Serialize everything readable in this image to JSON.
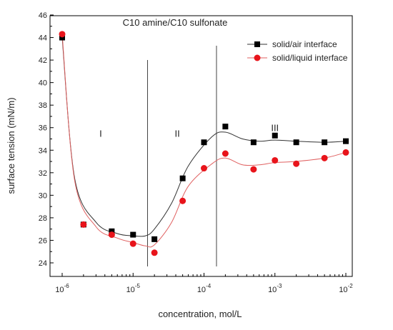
{
  "chart_data": {
    "type": "scatter",
    "title": "C10 amine/C10 sulfonate",
    "xlabel": "concentration, mol/L",
    "ylabel": "surface tension (mN/m)",
    "xscale": "log",
    "xlim": [
      1e-06,
      0.01
    ],
    "ylim": [
      24,
      46
    ],
    "xticks": [
      {
        "value": 1e-06,
        "base": "10",
        "exp": "-6"
      },
      {
        "value": 1e-05,
        "base": "10",
        "exp": "-5"
      },
      {
        "value": 0.0001,
        "base": "10",
        "exp": "-4"
      },
      {
        "value": 0.001,
        "base": "10",
        "exp": "-3"
      },
      {
        "value": 0.01,
        "base": "10",
        "exp": "-2"
      }
    ],
    "yticks": [
      "24",
      "26",
      "28",
      "30",
      "32",
      "34",
      "36",
      "38",
      "40",
      "42",
      "44",
      "46"
    ],
    "grid": false,
    "legend_position": "top-right",
    "series": [
      {
        "name": "solid/air interface",
        "color": "#000000",
        "line_color": "#333333",
        "marker": "square",
        "x": [
          1e-06,
          2e-06,
          5e-06,
          1e-05,
          2e-05,
          5e-05,
          0.0001,
          0.0002,
          0.0005,
          0.001,
          0.002,
          0.005,
          0.01
        ],
        "y": [
          44.0,
          27.4,
          26.8,
          26.5,
          26.1,
          31.5,
          34.7,
          36.1,
          34.7,
          35.3,
          34.7,
          34.7,
          34.8
        ],
        "curve": [
          44.0,
          31.5,
          27.6,
          26.6,
          26.4,
          26.4,
          27.0,
          29.3,
          32.6,
          35.2,
          35.6,
          35.0,
          34.8,
          34.9,
          34.8,
          34.7,
          34.8
        ]
      },
      {
        "name": "solid/liquid interface",
        "color": "#e8141b",
        "line_color": "#e06060",
        "marker": "circle",
        "x": [
          1e-06,
          2e-06,
          5e-06,
          1e-05,
          2e-05,
          5e-05,
          0.0001,
          0.0002,
          0.0005,
          0.001,
          0.002,
          0.005,
          0.01
        ],
        "y": [
          44.3,
          27.4,
          26.5,
          25.7,
          24.9,
          29.5,
          32.4,
          33.7,
          32.3,
          33.1,
          32.8,
          33.3,
          33.8
        ],
        "curve": [
          44.3,
          31.3,
          27.2,
          26.2,
          25.8,
          25.5,
          25.6,
          27.6,
          30.8,
          32.8,
          33.3,
          32.7,
          32.7,
          32.9,
          33.0,
          33.3,
          33.8
        ]
      }
    ],
    "curve_x": [
      1e-06,
      1.5e-06,
      3e-06,
      6e-06,
      1e-05,
      1.5e-05,
      2e-05,
      3.5e-05,
      6e-05,
      0.00013,
      0.0002,
      0.00035,
      0.0006,
      0.001,
      0.002,
      0.005,
      0.01
    ],
    "region_dividers": [
      1.6e-05,
      0.00015
    ],
    "regions": [
      {
        "label": "I",
        "x": 3.5e-06,
        "y": 35.2
      },
      {
        "label": "II",
        "x": 4.2e-05,
        "y": 35.2
      },
      {
        "label": "III",
        "x": 0.001,
        "y": 35.7
      }
    ]
  }
}
